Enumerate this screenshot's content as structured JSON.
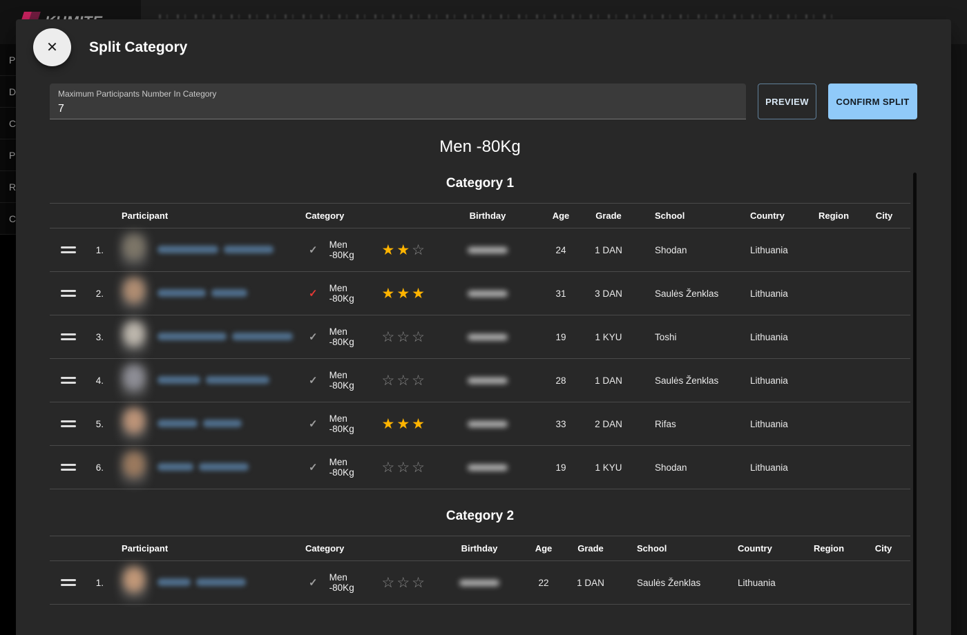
{
  "backdrop": {
    "logo_text": "KUMITE",
    "sidebar_items": [
      "P",
      "D",
      "C",
      "P",
      "R",
      "C"
    ]
  },
  "modal": {
    "title": "Split Category",
    "close_glyph": "✕",
    "max_participants_field": {
      "label": "Maximum Participants Number In Category",
      "value": "7"
    },
    "preview_button": "PREVIEW",
    "confirm_button": "CONFIRM SPLIT",
    "heading": "Men -80Kg"
  },
  "table_headers": [
    "Participant",
    "Category",
    "Birthday",
    "Age",
    "Grade",
    "School",
    "Country",
    "Region",
    "City"
  ],
  "sections": [
    {
      "title": "Category 1",
      "rows": [
        {
          "index": "1.",
          "category": "Men -80Kg",
          "stars": 2,
          "check": "default",
          "age": "24",
          "grade": "1 DAN",
          "school": "Shodan",
          "country": "Lithuania",
          "region": "",
          "city": "",
          "avatar_tone": "#7d7668",
          "name_mask": [
            88,
            72
          ]
        },
        {
          "index": "2.",
          "category": "Men -80Kg",
          "stars": 3,
          "check": "alert",
          "age": "31",
          "grade": "3 DAN",
          "school": "Saulės Ženklas",
          "country": "Lithuania",
          "region": "",
          "city": "",
          "avatar_tone": "#b08d72",
          "name_mask": [
            70,
            52
          ]
        },
        {
          "index": "3.",
          "category": "Men -80Kg",
          "stars": 0,
          "check": "default",
          "age": "19",
          "grade": "1 KYU",
          "school": "Toshi",
          "country": "Lithuania",
          "region": "",
          "city": "",
          "avatar_tone": "#bdb7ad",
          "name_mask": [
            100,
            88
          ]
        },
        {
          "index": "4.",
          "category": "Men -80Kg",
          "stars": 0,
          "check": "default",
          "age": "28",
          "grade": "1 DAN",
          "school": "Saulės Ženklas",
          "country": "Lithuania",
          "region": "",
          "city": "",
          "avatar_tone": "#8e8e96",
          "name_mask": [
            62,
            92
          ]
        },
        {
          "index": "5.",
          "category": "Men -80Kg",
          "stars": 3,
          "check": "default",
          "age": "33",
          "grade": "2 DAN",
          "school": "Rifas",
          "country": "Lithuania",
          "region": "",
          "city": "",
          "avatar_tone": "#bd9478",
          "name_mask": [
            58,
            56
          ]
        },
        {
          "index": "6.",
          "category": "Men -80Kg",
          "stars": 0,
          "check": "default",
          "age": "19",
          "grade": "1 KYU",
          "school": "Shodan",
          "country": "Lithuania",
          "region": "",
          "city": "",
          "avatar_tone": "#9c7a5e",
          "name_mask": [
            52,
            72
          ]
        }
      ]
    },
    {
      "title": "Category 2",
      "rows": [
        {
          "index": "1.",
          "category": "Men -80Kg",
          "stars": 0,
          "check": "default",
          "age": "22",
          "grade": "1 DAN",
          "school": "Saulės Ženklas",
          "country": "Lithuania",
          "region": "",
          "city": "",
          "avatar_tone": "#c29878",
          "name_mask": [
            48,
            72
          ]
        }
      ]
    }
  ],
  "colors": {
    "accent": "#90caf9",
    "star_filled": "#ffb400",
    "star_empty": "#8a8a8a",
    "check_default": "#9e9e9e",
    "check_alert": "#e53935",
    "name_link": "#4f6e8c"
  }
}
